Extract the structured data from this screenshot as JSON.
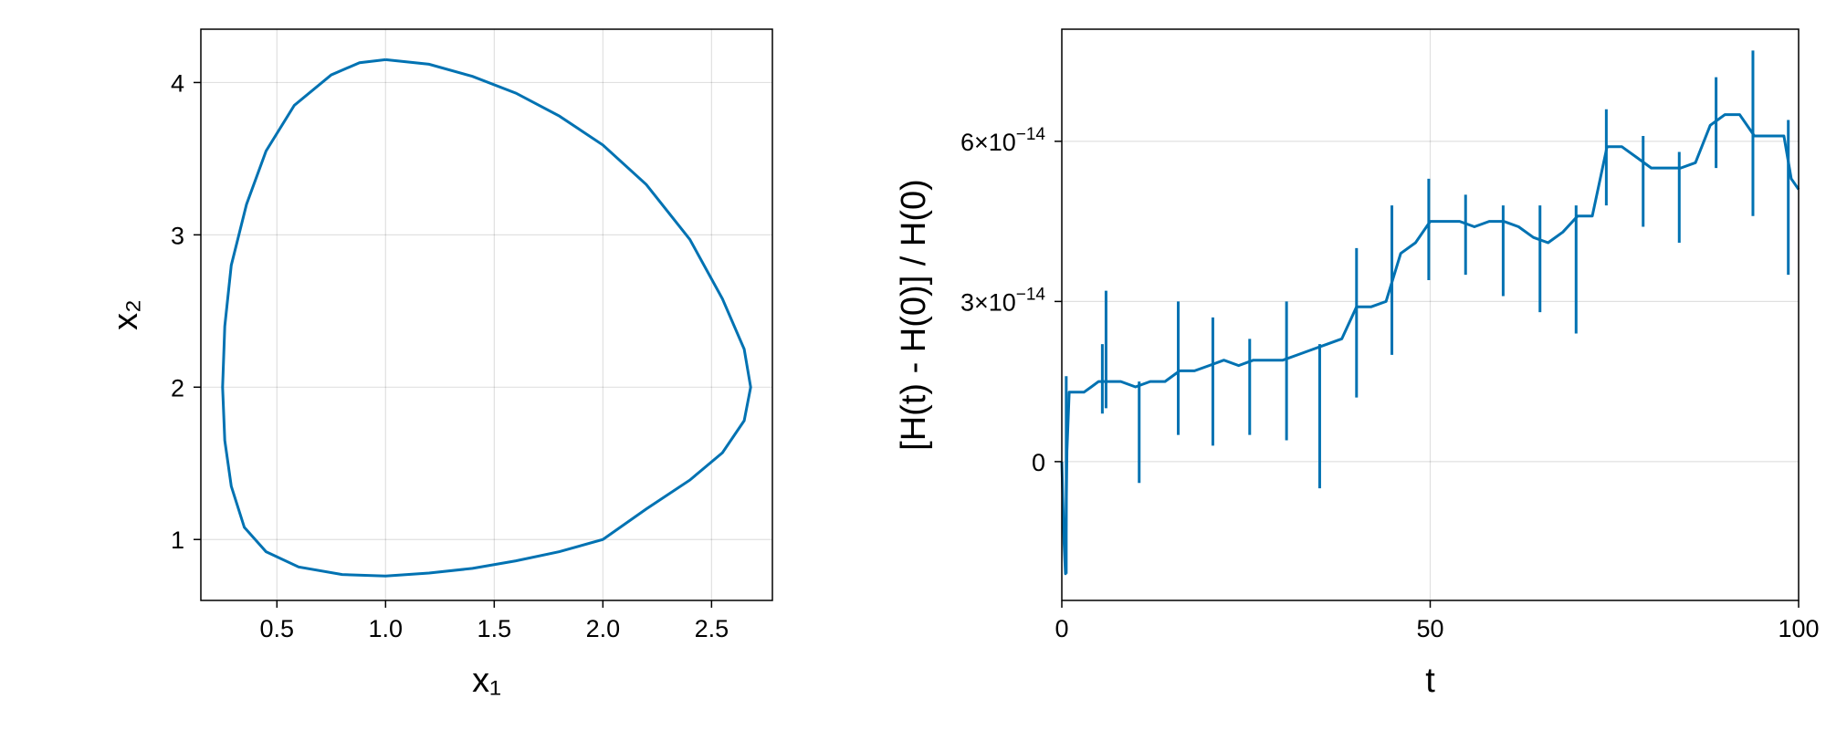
{
  "chart_data": [
    {
      "type": "line",
      "title": "",
      "xlabel": "x₁",
      "ylabel": "x₂",
      "xlim": [
        0.15,
        2.78
      ],
      "ylim": [
        0.6,
        4.35
      ],
      "xticks": [
        0.5,
        1.0,
        1.5,
        2.0,
        2.5
      ],
      "xtick_labels": [
        "0.5",
        "1.0",
        "1.5",
        "2.0",
        "2.5"
      ],
      "yticks": [
        1,
        2,
        3,
        4
      ],
      "ytick_labels": [
        "1",
        "2",
        "3",
        "4"
      ],
      "grid": true,
      "series": [
        {
          "color": "#0072b2",
          "points": [
            [
              1.0,
              4.15
            ],
            [
              1.2,
              4.12
            ],
            [
              1.4,
              4.04
            ],
            [
              1.6,
              3.93
            ],
            [
              1.8,
              3.78
            ],
            [
              2.0,
              3.59
            ],
            [
              2.2,
              3.33
            ],
            [
              2.4,
              2.97
            ],
            [
              2.55,
              2.58
            ],
            [
              2.65,
              2.25
            ],
            [
              2.68,
              2.0
            ],
            [
              2.65,
              1.78
            ],
            [
              2.55,
              1.57
            ],
            [
              2.4,
              1.39
            ],
            [
              2.2,
              1.2
            ],
            [
              2.0,
              1.0
            ],
            [
              1.8,
              0.92
            ],
            [
              1.6,
              0.86
            ],
            [
              1.4,
              0.81
            ],
            [
              1.2,
              0.78
            ],
            [
              1.0,
              0.76
            ],
            [
              0.8,
              0.77
            ],
            [
              0.6,
              0.82
            ],
            [
              0.45,
              0.92
            ],
            [
              0.35,
              1.08
            ],
            [
              0.29,
              1.35
            ],
            [
              0.26,
              1.65
            ],
            [
              0.25,
              2.0
            ],
            [
              0.26,
              2.4
            ],
            [
              0.29,
              2.8
            ],
            [
              0.36,
              3.2
            ],
            [
              0.45,
              3.55
            ],
            [
              0.58,
              3.85
            ],
            [
              0.75,
              4.05
            ],
            [
              0.88,
              4.13
            ],
            [
              1.0,
              4.15
            ]
          ]
        }
      ]
    },
    {
      "type": "line",
      "title": "",
      "xlabel": "t",
      "ylabel": "[H(t) - H(0)] / H(0)",
      "xlim": [
        0,
        100
      ],
      "ylim": [
        -2.6e-14,
        8.1e-14
      ],
      "xticks": [
        0,
        50,
        100
      ],
      "xtick_labels": [
        "0",
        "50",
        "100"
      ],
      "yticks": [
        0,
        3e-14,
        6e-14
      ],
      "ytick_labels": [
        {
          "mantissa": "0",
          "exponent": ""
        },
        {
          "mantissa": "3×10",
          "exponent": "−14"
        },
        {
          "mantissa": "6×10",
          "exponent": "−14"
        }
      ],
      "grid": true,
      "series": [
        {
          "color": "#0072b2",
          "points": [
            [
              0,
              0
            ],
            [
              0.3,
              -1.5e-14
            ],
            [
              0.5,
              -2.1e-14
            ],
            [
              0.7,
              2e-15
            ],
            [
              1.0,
              1.3e-14
            ],
            [
              2,
              1.3e-14
            ],
            [
              3,
              1.3e-14
            ],
            [
              4,
              1.4e-14
            ],
            [
              5,
              1.5e-14
            ],
            [
              6,
              1.5e-14
            ],
            [
              8,
              1.5e-14
            ],
            [
              10,
              1.4e-14
            ],
            [
              12,
              1.5e-14
            ],
            [
              14,
              1.5e-14
            ],
            [
              16,
              1.7e-14
            ],
            [
              18,
              1.7e-14
            ],
            [
              20,
              1.8e-14
            ],
            [
              22,
              1.9e-14
            ],
            [
              24,
              1.8e-14
            ],
            [
              26,
              1.9e-14
            ],
            [
              28,
              1.9e-14
            ],
            [
              30,
              1.9e-14
            ],
            [
              32,
              2e-14
            ],
            [
              34,
              2.1e-14
            ],
            [
              36,
              2.2e-14
            ],
            [
              38,
              2.3e-14
            ],
            [
              40,
              2.9e-14
            ],
            [
              42,
              2.9e-14
            ],
            [
              44,
              3e-14
            ],
            [
              46,
              3.9e-14
            ],
            [
              48,
              4.1e-14
            ],
            [
              50,
              4.5e-14
            ],
            [
              52,
              4.5e-14
            ],
            [
              54,
              4.5e-14
            ],
            [
              56,
              4.4e-14
            ],
            [
              58,
              4.5e-14
            ],
            [
              60,
              4.5e-14
            ],
            [
              62,
              4.4e-14
            ],
            [
              64,
              4.2e-14
            ],
            [
              66,
              4.1e-14
            ],
            [
              68,
              4.3e-14
            ],
            [
              70,
              4.6e-14
            ],
            [
              72,
              4.6e-14
            ],
            [
              74,
              5.9e-14
            ],
            [
              76,
              5.9e-14
            ],
            [
              78,
              5.7e-14
            ],
            [
              80,
              5.5e-14
            ],
            [
              82,
              5.5e-14
            ],
            [
              84,
              5.5e-14
            ],
            [
              86,
              5.6e-14
            ],
            [
              88,
              6.3e-14
            ],
            [
              90,
              6.5e-14
            ],
            [
              92,
              6.5e-14
            ],
            [
              94,
              6.1e-14
            ],
            [
              96,
              6.1e-14
            ],
            [
              98,
              6.1e-14
            ],
            [
              99,
              5.3e-14
            ],
            [
              100,
              5.1e-14
            ]
          ],
          "spikes": [
            {
              "x": 0.6,
              "lo": -2.1e-14,
              "hi": 1.6e-14
            },
            {
              "x": 5.5,
              "lo": 9e-15,
              "hi": 2.2e-14
            },
            {
              "x": 6.0,
              "lo": 1e-14,
              "hi": 3.2e-14
            },
            {
              "x": 10.5,
              "lo": -4e-15,
              "hi": 1.5e-14
            },
            {
              "x": 15.8,
              "lo": 5e-15,
              "hi": 3e-14
            },
            {
              "x": 20.5,
              "lo": 3e-15,
              "hi": 2.7e-14
            },
            {
              "x": 25.5,
              "lo": 5e-15,
              "hi": 2.3e-14
            },
            {
              "x": 30.5,
              "lo": 4e-15,
              "hi": 3e-14
            },
            {
              "x": 35.0,
              "lo": -5e-15,
              "hi": 2.2e-14
            },
            {
              "x": 40.0,
              "lo": 1.2e-14,
              "hi": 4e-14
            },
            {
              "x": 44.8,
              "lo": 2e-14,
              "hi": 4.8e-14
            },
            {
              "x": 49.8,
              "lo": 3.4e-14,
              "hi": 5.3e-14
            },
            {
              "x": 54.8,
              "lo": 3.5e-14,
              "hi": 5e-14
            },
            {
              "x": 59.9,
              "lo": 3.1e-14,
              "hi": 4.8e-14
            },
            {
              "x": 64.9,
              "lo": 2.8e-14,
              "hi": 4.8e-14
            },
            {
              "x": 69.8,
              "lo": 2.4e-14,
              "hi": 4.8e-14
            },
            {
              "x": 73.9,
              "lo": 4.8e-14,
              "hi": 6.6e-14
            },
            {
              "x": 78.9,
              "lo": 4.4e-14,
              "hi": 6.1e-14
            },
            {
              "x": 83.8,
              "lo": 4.1e-14,
              "hi": 5.8e-14
            },
            {
              "x": 88.8,
              "lo": 5.5e-14,
              "hi": 7.2e-14
            },
            {
              "x": 93.8,
              "lo": 4.6e-14,
              "hi": 7.7e-14
            },
            {
              "x": 98.6,
              "lo": 3.5e-14,
              "hi": 6.4e-14
            }
          ]
        }
      ]
    }
  ]
}
